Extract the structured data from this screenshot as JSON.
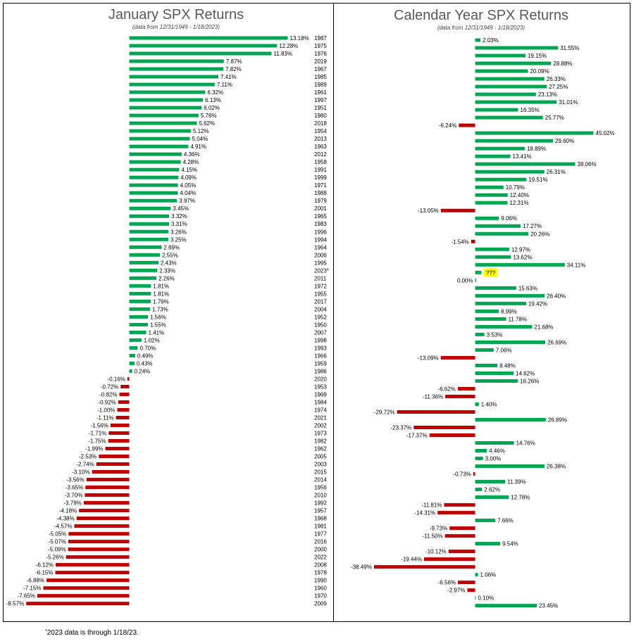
{
  "chart_data": [
    {
      "type": "bar",
      "orientation": "horizontal",
      "title": "January SPX Returns",
      "subtitle": "(data from 12/31/1949 - 1/18/2023)",
      "unit": "%",
      "colors": {
        "positive": "#00a651",
        "negative": "#c00000"
      },
      "categories": [
        "1987",
        "1975",
        "1976",
        "2019",
        "1967",
        "1985",
        "1989",
        "1961",
        "1997",
        "1951",
        "1980",
        "2018",
        "1954",
        "2013",
        "1963",
        "2012",
        "1958",
        "1991",
        "1999",
        "1971",
        "1988",
        "1979",
        "2001",
        "1965",
        "1983",
        "1996",
        "1994",
        "1964",
        "2006",
        "1995",
        "2023*",
        "2011",
        "1972",
        "1955",
        "2017",
        "2004",
        "1952",
        "1950",
        "2007",
        "1998",
        "1993",
        "1966",
        "1959",
        "1986",
        "2020",
        "1953",
        "1969",
        "1984",
        "1974",
        "2021",
        "2002",
        "1973",
        "1982",
        "1962",
        "2005",
        "2003",
        "2015",
        "2014",
        "1956",
        "2010",
        "1992",
        "1957",
        "1968",
        "1981",
        "1977",
        "2016",
        "2000",
        "2022",
        "2008",
        "1978",
        "1990",
        "1960",
        "1970",
        "2009"
      ],
      "values": [
        13.18,
        12.28,
        11.83,
        7.87,
        7.82,
        7.41,
        7.11,
        6.32,
        6.13,
        6.02,
        5.76,
        5.62,
        5.12,
        5.04,
        4.91,
        4.36,
        4.28,
        4.15,
        4.09,
        4.05,
        4.04,
        3.97,
        3.45,
        3.32,
        3.31,
        3.26,
        3.25,
        2.69,
        2.55,
        2.43,
        2.33,
        2.26,
        1.81,
        1.81,
        1.79,
        1.73,
        1.56,
        1.55,
        1.41,
        1.02,
        0.7,
        0.49,
        0.43,
        0.24,
        -0.16,
        -0.72,
        -0.82,
        -0.92,
        -1.0,
        -1.11,
        -1.56,
        -1.71,
        -1.75,
        -1.99,
        -2.53,
        -2.74,
        -3.1,
        -3.56,
        -3.65,
        -3.7,
        -3.79,
        -4.18,
        -4.38,
        -4.57,
        -5.05,
        -5.07,
        -5.09,
        -5.26,
        -6.12,
        -6.15,
        -6.88,
        -7.15,
        -7.65,
        -8.57
      ],
      "labels": [
        "13.18%",
        "12.28%",
        "11.83%",
        "7.87%",
        "7.82%",
        "7.41%",
        "7.11%",
        "6.32%",
        "6.13%",
        "6.02%",
        "5.76%",
        "5.62%",
        "5.12%",
        "5.04%",
        "4.91%",
        "4.36%",
        "4.28%",
        "4.15%",
        "4.09%",
        "4.05%",
        "4.04%",
        "3.97%",
        "3.45%",
        "3.32%",
        "3.31%",
        "3.26%",
        "3.25%",
        "2.69%",
        "2.55%",
        "2.43%",
        "2.33%",
        "2.26%",
        "1.81%",
        "1.81%",
        "1.79%",
        "1.73%",
        "1.56%",
        "1.55%",
        "1.41%",
        "1.02%",
        "0.70%",
        "0.49%",
        "0.43%",
        "0.24%",
        "-0.16%",
        "-0.72%",
        "-0.82%",
        "-0.92%",
        "-1.00%",
        "-1.11%",
        "-1.56%",
        "-1.71%",
        "-1.75%",
        "-1.99%",
        "-2.53%",
        "-2.74%",
        "-3.10%",
        "-3.56%",
        "-3.65%",
        "-3.70%",
        "-3.79%",
        "-4.18%",
        "-4.38%",
        "-4.57%",
        "-5.05%",
        "-5.07%",
        "-5.09%",
        "-5.26%",
        "-6.12%",
        "-6.15%",
        "-6.88%",
        "-7.15%",
        "-7.65%",
        "-8.57%"
      ]
    },
    {
      "type": "bar",
      "orientation": "horizontal",
      "title": "Calendar Year SPX Returns",
      "subtitle": "(data from 12/31/1949 - 1/18/2023)",
      "unit": "%",
      "colors": {
        "positive": "#00a651",
        "negative": "#c00000",
        "highlight": "#ffff00"
      },
      "values": [
        2.03,
        31.55,
        19.15,
        28.88,
        20.09,
        26.33,
        27.25,
        23.13,
        31.01,
        16.35,
        25.77,
        -6.24,
        45.02,
        29.6,
        18.89,
        13.41,
        38.06,
        26.31,
        19.51,
        10.79,
        12.4,
        12.31,
        -13.05,
        9.06,
        17.27,
        20.26,
        -1.54,
        12.97,
        13.62,
        34.11,
        null,
        0.0,
        15.63,
        26.4,
        19.42,
        8.99,
        11.78,
        21.68,
        3.53,
        26.69,
        7.06,
        -13.09,
        8.48,
        14.62,
        16.26,
        -6.62,
        -11.36,
        1.4,
        -29.72,
        26.89,
        -23.37,
        -17.37,
        14.76,
        4.46,
        3.0,
        26.38,
        -0.73,
        11.39,
        2.62,
        12.78,
        -11.81,
        -14.31,
        7.66,
        -9.73,
        -11.5,
        9.54,
        -10.12,
        -19.44,
        -38.49,
        1.06,
        -6.56,
        -2.97,
        0.1,
        23.45
      ],
      "labels": [
        "2.03%",
        "31.55%",
        "19.15%",
        "28.88%",
        "20.09%",
        "26.33%",
        "27.25%",
        "23.13%",
        "31.01%",
        "16.35%",
        "25.77%",
        "-6.24%",
        "45.02%",
        "29.60%",
        "18.89%",
        "13.41%",
        "38.06%",
        "26.31%",
        "19.51%",
        "10.79%",
        "12.40%",
        "12.31%",
        "-13.05%",
        "9.06%",
        "17.27%",
        "20.26%",
        "-1.54%",
        "12.97%",
        "13.62%",
        "34.11%",
        "???",
        "0.00%",
        "15.63%",
        "26.40%",
        "19.42%",
        "8.99%",
        "11.78%",
        "21.68%",
        "3.53%",
        "26.69%",
        "7.06%",
        "-13.09%",
        "8.48%",
        "14.62%",
        "16.26%",
        "-6.62%",
        "-11.36%",
        "1.40%",
        "-29.72%",
        "26.89%",
        "-23.37%",
        "-17.37%",
        "14.76%",
        "4.46%",
        "3.00%",
        "26.38%",
        "-0.73%",
        "11.39%",
        "2.62%",
        "12.78%",
        "-11.81%",
        "-14.31%",
        "7.66%",
        "-9.73%",
        "-11.50%",
        "9.54%",
        "-10.12%",
        "-19.44%",
        "-38.49%",
        "1.06%",
        "-6.56%",
        "-2.97%",
        "0.10%",
        "23.45%"
      ],
      "unknown_label": "???"
    }
  ],
  "footnote": {
    "marker": "*",
    "text": "2023 data is through 1/18/23."
  }
}
